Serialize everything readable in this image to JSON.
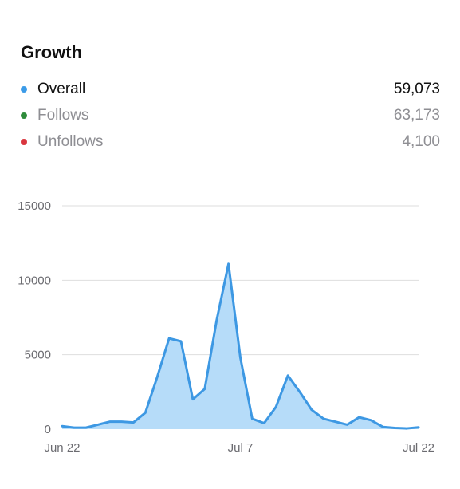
{
  "title": "Growth",
  "legend": [
    {
      "label": "Overall",
      "value": "59,073",
      "color": "#3b9be8",
      "active": true
    },
    {
      "label": "Follows",
      "value": "63,173",
      "color": "#2e8b3a",
      "active": false
    },
    {
      "label": "Unfollows",
      "value": "4,100",
      "color": "#d9363e",
      "active": false
    }
  ],
  "chart_data": {
    "type": "area",
    "series": [
      {
        "name": "Overall",
        "color": "#3d98e3",
        "fill": "#b6dcf9",
        "values": [
          200,
          100,
          100,
          300,
          500,
          500,
          450,
          1100,
          3500,
          6100,
          5900,
          2000,
          2700,
          7300,
          11100,
          4800,
          700,
          400,
          1500,
          3600,
          2500,
          1300,
          700,
          500,
          300,
          800,
          600,
          150,
          80,
          50,
          120
        ]
      }
    ],
    "x_labels": [
      "Jun 22",
      "Jul 7",
      "Jul 22"
    ],
    "x_label_indices": [
      0,
      15,
      30
    ],
    "y_ticks": [
      0,
      5000,
      10000,
      15000
    ],
    "ylim": [
      0,
      15000
    ],
    "grid": true
  }
}
